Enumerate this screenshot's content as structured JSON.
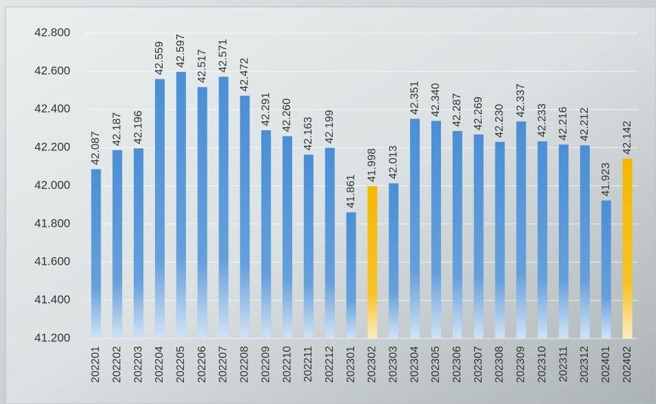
{
  "chart_data": {
    "type": "bar",
    "categories": [
      "202201",
      "202202",
      "202203",
      "202204",
      "202205",
      "202206",
      "202207",
      "202208",
      "202209",
      "202210",
      "202211",
      "202212",
      "202301",
      "202302",
      "202303",
      "202304",
      "202305",
      "202306",
      "202307",
      "202308",
      "202309",
      "202310",
      "202311",
      "202312",
      "202401",
      "202402"
    ],
    "values": [
      42.087,
      42.187,
      42.196,
      42.559,
      42.597,
      42.517,
      42.571,
      42.472,
      42.291,
      42.26,
      42.163,
      42.199,
      41.861,
      41.998,
      42.013,
      42.351,
      42.34,
      42.287,
      42.269,
      42.23,
      42.337,
      42.233,
      42.216,
      42.212,
      41.923,
      42.142
    ],
    "value_labels": [
      "42.087",
      "42.187",
      "42.196",
      "42.559",
      "42.597",
      "42.517",
      "42.571",
      "42.472",
      "42.291",
      "42.260",
      "42.163",
      "42.199",
      "41.861",
      "41.998",
      "42.013",
      "42.351",
      "42.340",
      "42.287",
      "42.269",
      "42.230",
      "42.337",
      "42.233",
      "42.216",
      "42.212",
      "41.923",
      "42.142"
    ],
    "colors": [
      "#4a8fd6",
      "#4a8fd6",
      "#4a8fd6",
      "#4a8fd6",
      "#4a8fd6",
      "#4a8fd6",
      "#4a8fd6",
      "#4a8fd6",
      "#4a8fd6",
      "#4a8fd6",
      "#4a8fd6",
      "#4a8fd6",
      "#4a8fd6",
      "#f5b800",
      "#4a8fd6",
      "#4a8fd6",
      "#4a8fd6",
      "#4a8fd6",
      "#4a8fd6",
      "#4a8fd6",
      "#4a8fd6",
      "#4a8fd6",
      "#4a8fd6",
      "#4a8fd6",
      "#4a8fd6",
      "#f5b800"
    ],
    "ylim": [
      41.2,
      42.8
    ],
    "yticks": [
      {
        "value": 41.2,
        "label": "41.200"
      },
      {
        "value": 41.4,
        "label": "41.400"
      },
      {
        "value": 41.6,
        "label": "41.600"
      },
      {
        "value": 41.8,
        "label": "41.800"
      },
      {
        "value": 42.0,
        "label": "42.000"
      },
      {
        "value": 42.2,
        "label": "42.200"
      },
      {
        "value": 42.4,
        "label": "42.400"
      },
      {
        "value": 42.6,
        "label": "42.600"
      },
      {
        "value": 42.8,
        "label": "42.800"
      }
    ],
    "grid": true
  }
}
